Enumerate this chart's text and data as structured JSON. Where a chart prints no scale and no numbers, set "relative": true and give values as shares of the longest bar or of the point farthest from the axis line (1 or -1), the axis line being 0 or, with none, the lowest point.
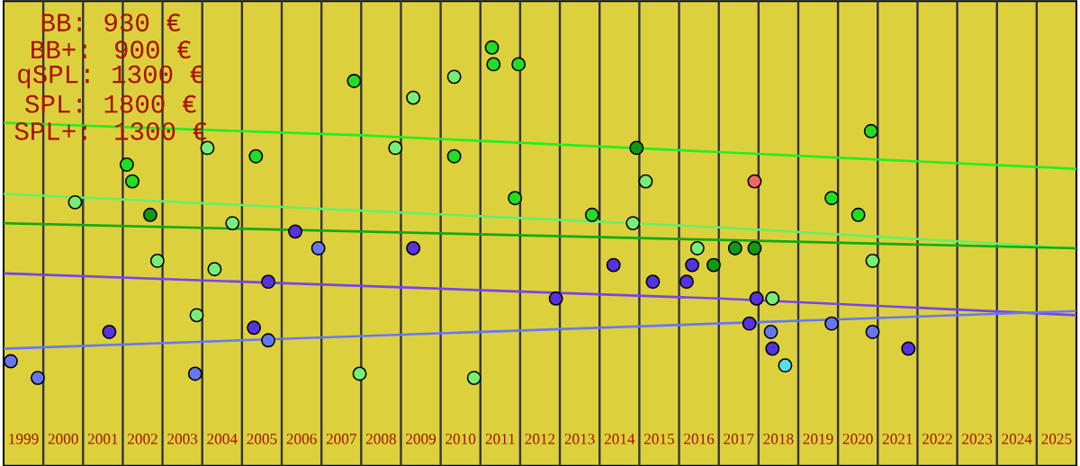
{
  "chart_data": {
    "type": "scatter",
    "relative": true,
    "grid": "x",
    "marker": "circle",
    "annotations": [
      "BB: 930 €",
      "BB+: 900 €",
      "qSPL: 1300 €",
      "SPL: 1800 €",
      "SPL+: 1300 €"
    ],
    "xlim": [
      1999,
      2026
    ],
    "xticks": [
      {
        "value": 1999.5,
        "label": "1999"
      },
      {
        "value": 2000.5,
        "label": "2000"
      },
      {
        "value": 2001.5,
        "label": "2001"
      },
      {
        "value": 2002.5,
        "label": "2002"
      },
      {
        "value": 2003.5,
        "label": "2003"
      },
      {
        "value": 2004.5,
        "label": "2004"
      },
      {
        "value": 2005.5,
        "label": "2005"
      },
      {
        "value": 2006.5,
        "label": "2006"
      },
      {
        "value": 2007.5,
        "label": "2007"
      },
      {
        "value": 2008.5,
        "label": "2008"
      },
      {
        "value": 2009.5,
        "label": "2009"
      },
      {
        "value": 2010.5,
        "label": "2010"
      },
      {
        "value": 2011.5,
        "label": "2011"
      },
      {
        "value": 2012.5,
        "label": "2012"
      },
      {
        "value": 2013.5,
        "label": "2013"
      },
      {
        "value": 2014.5,
        "label": "2014"
      },
      {
        "value": 2015.5,
        "label": "2015"
      },
      {
        "value": 2016.5,
        "label": "2016"
      },
      {
        "value": 2017.5,
        "label": "2017"
      },
      {
        "value": 2018.5,
        "label": "2018"
      },
      {
        "value": 2019.5,
        "label": "2019"
      },
      {
        "value": 2020.5,
        "label": "2020"
      },
      {
        "value": 2021.5,
        "label": "2021"
      },
      {
        "value": 2022.5,
        "label": "2022"
      },
      {
        "value": 2023.5,
        "label": "2023"
      },
      {
        "value": 2024.5,
        "label": "2024"
      },
      {
        "value": 2025.5,
        "label": "2025"
      },
      {
        "value": 2000,
        "label": null
      },
      {
        "value": 2001,
        "label": null
      },
      {
        "value": 2002,
        "label": null
      },
      {
        "value": 2003,
        "label": null
      },
      {
        "value": 2004,
        "label": null
      },
      {
        "value": 2005,
        "label": null
      },
      {
        "value": 2006,
        "label": null
      },
      {
        "value": 2007,
        "label": null
      },
      {
        "value": 2008,
        "label": null
      },
      {
        "value": 2009,
        "label": null
      },
      {
        "value": 2010,
        "label": null
      },
      {
        "value": 2011,
        "label": null
      },
      {
        "value": 2012,
        "label": null
      },
      {
        "value": 2013,
        "label": null
      },
      {
        "value": 2014,
        "label": null
      },
      {
        "value": 2015,
        "label": null
      },
      {
        "value": 2016,
        "label": null
      },
      {
        "value": 2017,
        "label": null
      },
      {
        "value": 2018,
        "label": null
      },
      {
        "value": 2019,
        "label": null
      },
      {
        "value": 2020,
        "label": null
      },
      {
        "value": 2021,
        "label": null
      },
      {
        "value": 2022,
        "label": null
      },
      {
        "value": 2023,
        "label": null
      },
      {
        "value": 2024,
        "label": null
      },
      {
        "value": 2025,
        "label": null
      }
    ],
    "series": [
      {
        "x": [
          1999.18,
          1999.86,
          2000.8,
          2001.66,
          2002.1,
          2002.24,
          2002.69,
          2002.87,
          2003.82,
          2003.86,
          2004.13,
          2004.31,
          2004.76,
          2005.3,
          2005.35,
          2005.66,
          2005.66,
          2006.34,
          2006.92,
          2007.82,
          2007.96,
          2008.86,
          2009.31,
          2009.31,
          2010.34,
          2010.34,
          2010.84,
          2011.29,
          2011.33,
          2011.87,
          2011.96,
          2012.9,
          2013.81,
          2014.35,
          2014.84,
          2014.93,
          2015.16,
          2015.34,
          2016.19,
          2016.33,
          2016.46,
          2016.87,
          2017.41,
          2017.77,
          2017.9,
          2017.9,
          2017.95,
          2018.31,
          2018.35,
          2018.35,
          2018.67,
          2019.84,
          2019.84,
          2020.51,
          2020.83,
          2020.87,
          2020.87,
          2021.77
        ],
        "values": [
          0.25,
          0.21,
          0.63,
          0.32,
          0.72,
          0.68,
          0.6,
          0.49,
          0.22,
          0.36,
          0.76,
          0.47,
          0.58,
          0.33,
          0.74,
          0.44,
          0.3,
          0.56,
          0.52,
          0.92,
          0.22,
          0.76,
          0.88,
          0.52,
          0.93,
          0.74,
          0.21,
          1,
          0.96,
          0.64,
          0.96,
          0.4,
          0.6,
          0.48,
          0.58,
          0.76,
          0.68,
          0.44,
          0.44,
          0.48,
          0.52,
          0.48,
          0.52,
          0.34,
          0.68,
          0.52,
          0.4,
          0.32,
          0.4,
          0.28,
          0.24,
          0.64,
          0.34,
          0.6,
          0.8,
          0.49,
          0.32,
          0.28
        ],
        "colors": [
          "#6677ee",
          "#6677ee",
          "#77ee77",
          "#5533dd",
          "#22dd22",
          "#22dd22",
          "#119911",
          "#77ee77",
          "#6677ee",
          "#77ee77",
          "#77ee77",
          "#77ee77",
          "#77ee77",
          "#5533dd",
          "#22dd22",
          "#5533dd",
          "#6677ee",
          "#5533dd",
          "#6677ee",
          "#22dd22",
          "#77ee77",
          "#77ee77",
          "#77ee77",
          "#5533dd",
          "#77ee77",
          "#22dd22",
          "#77ee77",
          "#22dd22",
          "#22dd22",
          "#22dd22",
          "#22dd22",
          "#5533dd",
          "#22dd22",
          "#5533dd",
          "#77ee77",
          "#119911",
          "#77ee77",
          "#5533dd",
          "#5533dd",
          "#5533dd",
          "#77ee77",
          "#119911",
          "#119911",
          "#5533dd",
          "#ee6666",
          "#119911",
          "#5533dd",
          "#6677ee",
          "#77ee77",
          "#5533dd",
          "#55ddee",
          "#22dd22",
          "#6677ee",
          "#22dd22",
          "#22dd22",
          "#77ee77",
          "#6677ee",
          "#5533dd"
        ]
      },
      {
        "type": "line",
        "marker": "none",
        "color": "#22ee22",
        "x": [
          1999,
          2008,
          2017,
          2026
        ],
        "values": [
          0.82,
          0.79,
          0.75,
          0.71
        ]
      },
      {
        "type": "line",
        "marker": "none",
        "color": "#66f066",
        "x": [
          1999,
          2008,
          2017,
          2026
        ],
        "values": [
          0.65,
          0.61,
          0.57,
          0.52
        ]
      },
      {
        "type": "line",
        "marker": "none",
        "color": "#11aa11",
        "x": [
          1999,
          2008,
          2017,
          2026
        ],
        "values": [
          0.58,
          0.56,
          0.54,
          0.52
        ]
      },
      {
        "type": "line",
        "marker": "none",
        "color": "#7744ee",
        "x": [
          1999,
          2008,
          2017,
          2026
        ],
        "values": [
          0.46,
          0.43,
          0.4,
          0.36
        ]
      },
      {
        "type": "line",
        "marker": "none",
        "color": "#6677ff",
        "x": [
          1999,
          2008,
          2017,
          2026
        ],
        "values": [
          0.28,
          0.31,
          0.34,
          0.37
        ]
      }
    ]
  }
}
